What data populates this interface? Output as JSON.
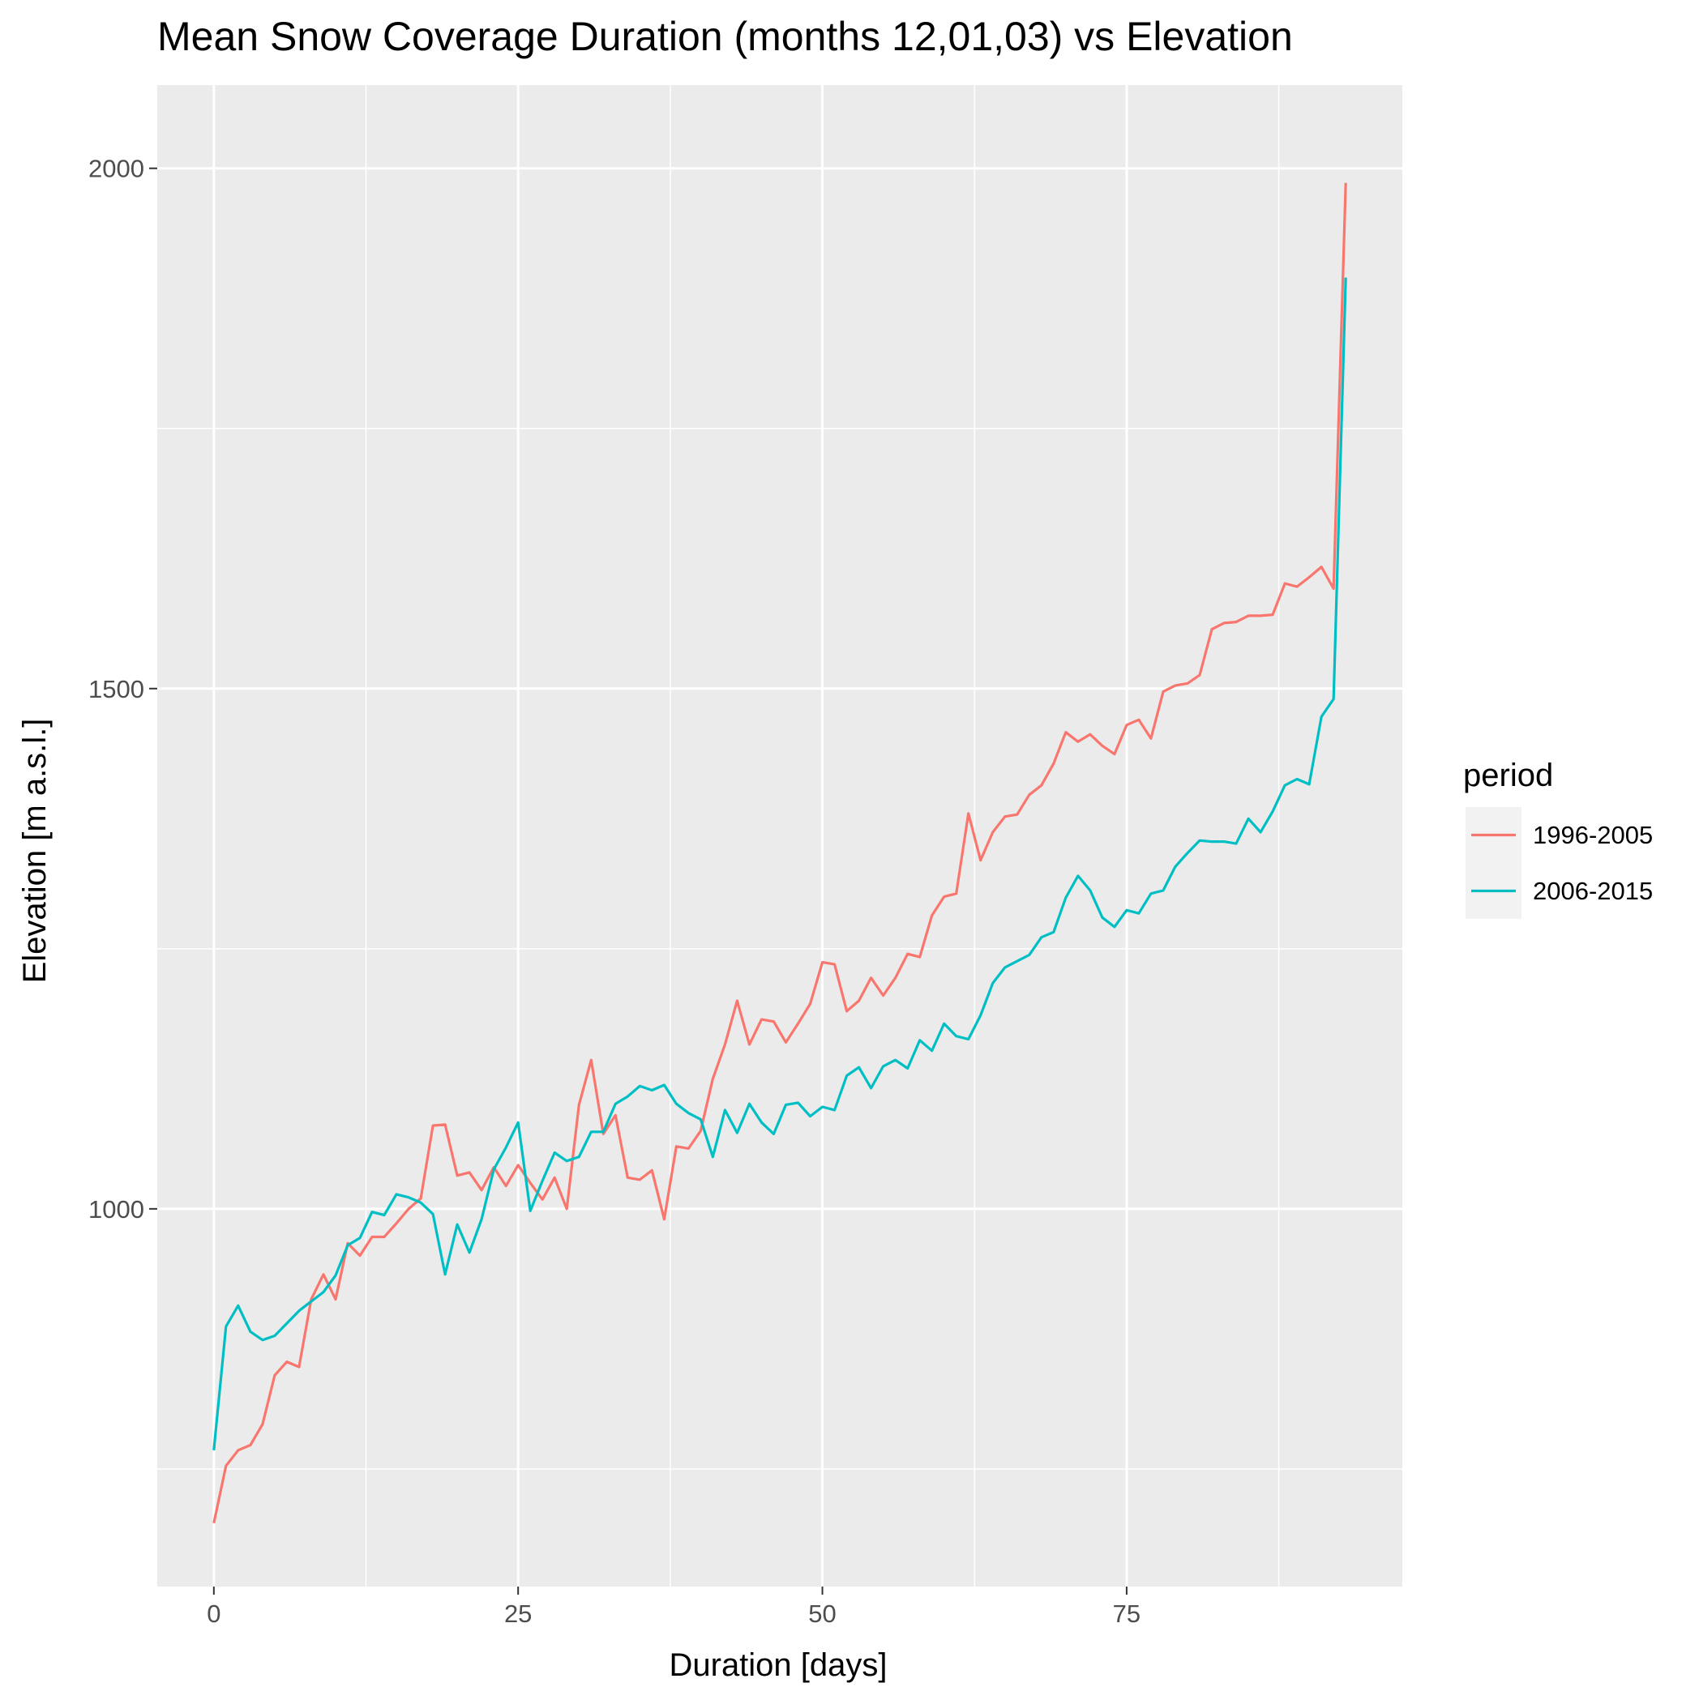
{
  "chart_data": {
    "type": "line",
    "title": "Mean Snow Coverage Duration (months 12,01,03) vs Elevation",
    "xlabel": "Duration [days]",
    "ylabel": "Elevation [m a.s.l.]",
    "xlim": [
      -4.65,
      97.65
    ],
    "ylim": [
      637,
      2080
    ],
    "x_ticks": [
      0,
      25,
      50,
      75
    ],
    "x_tick_labels": [
      "0",
      "25",
      "50",
      "75"
    ],
    "x_minor_ticks": [
      12.5,
      37.5,
      62.5,
      87.5
    ],
    "y_ticks": [
      1000,
      1500,
      2000
    ],
    "y_tick_labels": [
      "1000",
      "1500",
      "2000"
    ],
    "y_minor_ticks": [
      750,
      1250,
      1750
    ],
    "grid": true,
    "legend": {
      "title": "period",
      "position": "right"
    },
    "colors": {
      "panel": "#ebebeb",
      "grid": "#ffffff"
    },
    "series": [
      {
        "name": "1996-2005",
        "color": "#f8766d",
        "x": [
          0,
          1,
          2,
          3,
          4,
          5,
          6,
          7,
          8,
          9,
          10,
          11,
          12,
          13,
          14,
          15,
          16,
          17,
          18,
          19,
          20,
          21,
          22,
          23,
          24,
          25,
          26,
          27,
          28,
          29,
          30,
          31,
          32,
          33,
          34,
          35,
          36,
          37,
          38,
          39,
          40,
          41,
          42,
          43,
          44,
          45,
          46,
          47,
          48,
          49,
          50,
          51,
          52,
          53,
          54,
          55,
          56,
          57,
          58,
          59,
          60,
          61,
          62,
          63,
          64,
          65,
          66,
          67,
          68,
          69,
          70,
          71,
          72,
          73,
          74,
          75,
          76,
          77,
          78,
          79,
          80,
          81,
          82,
          83,
          84,
          85,
          86,
          87,
          88,
          89,
          90,
          91,
          92,
          93
        ],
        "values": [
          698,
          753,
          768,
          773,
          793,
          840,
          853,
          848,
          913,
          937,
          913,
          967,
          955,
          973,
          973,
          986,
          1000,
          1010,
          1080,
          1081,
          1032,
          1035,
          1018,
          1040,
          1022,
          1042,
          1025,
          1009,
          1030,
          1000,
          1100,
          1143,
          1072,
          1090,
          1030,
          1028,
          1037,
          990,
          1060,
          1058,
          1075,
          1125,
          1158,
          1200,
          1158,
          1182,
          1180,
          1160,
          1178,
          1197,
          1237,
          1235,
          1190,
          1200,
          1222,
          1205,
          1222,
          1245,
          1242,
          1282,
          1300,
          1303,
          1380,
          1335,
          1362,
          1377,
          1379,
          1398,
          1407,
          1428,
          1458,
          1449,
          1456,
          1445,
          1437,
          1465,
          1470,
          1452,
          1497,
          1503,
          1505,
          1513,
          1557,
          1563,
          1564,
          1570,
          1570,
          1571,
          1601,
          1598,
          1607,
          1617,
          1596,
          1986
        ]
      },
      {
        "name": "2006-2015",
        "color": "#00bfc4",
        "x": [
          0,
          1,
          2,
          3,
          4,
          5,
          6,
          7,
          8,
          9,
          10,
          11,
          12,
          13,
          14,
          15,
          16,
          17,
          18,
          19,
          20,
          21,
          22,
          23,
          24,
          25,
          26,
          27,
          28,
          29,
          30,
          31,
          32,
          33,
          34,
          35,
          36,
          37,
          38,
          39,
          40,
          41,
          42,
          43,
          44,
          45,
          46,
          47,
          48,
          49,
          50,
          51,
          52,
          53,
          54,
          55,
          56,
          57,
          58,
          59,
          60,
          61,
          62,
          63,
          64,
          65,
          66,
          67,
          68,
          69,
          70,
          71,
          72,
          73,
          74,
          75,
          76,
          77,
          78,
          79,
          80,
          81,
          82,
          83,
          84,
          85,
          86,
          87,
          88,
          89,
          90,
          91,
          92,
          93
        ],
        "values": [
          768,
          887,
          907,
          882,
          874,
          878,
          890,
          902,
          911,
          920,
          936,
          965,
          972,
          997,
          994,
          1014,
          1011,
          1006,
          995,
          937,
          985,
          958,
          990,
          1038,
          1059,
          1083,
          998,
          1027,
          1054,
          1046,
          1050,
          1074,
          1074,
          1101,
          1108,
          1118,
          1114,
          1119,
          1101,
          1092,
          1086,
          1050,
          1095,
          1073,
          1101,
          1083,
          1072,
          1100,
          1102,
          1089,
          1098,
          1095,
          1128,
          1136,
          1116,
          1137,
          1143,
          1135,
          1162,
          1152,
          1178,
          1166,
          1163,
          1186,
          1217,
          1232,
          1238,
          1244,
          1261,
          1266,
          1299,
          1320,
          1306,
          1280,
          1271,
          1287,
          1284,
          1303,
          1306,
          1329,
          1342,
          1354,
          1353,
          1353,
          1351,
          1375,
          1362,
          1382,
          1407,
          1413,
          1408,
          1473,
          1490,
          1895
        ]
      }
    ]
  }
}
